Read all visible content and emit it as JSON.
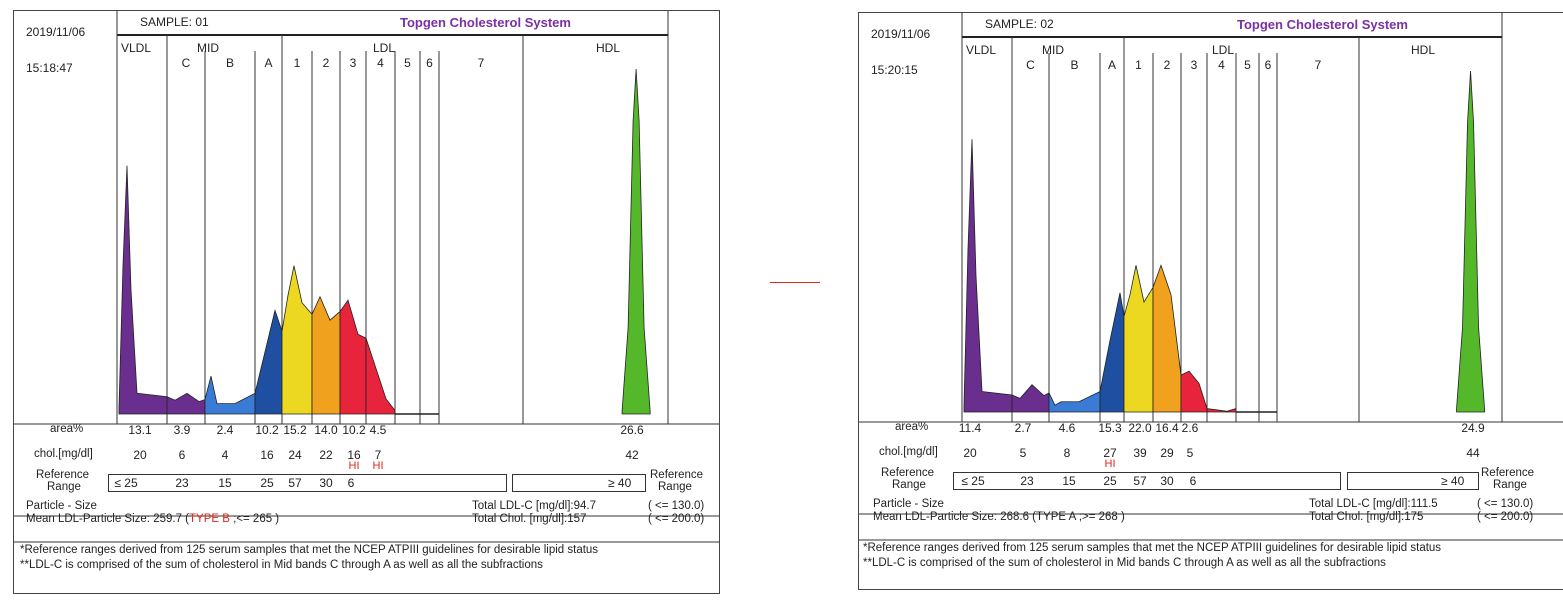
{
  "colors": {
    "vldl": "#6a2e8f",
    "mid": "#3a7bd5",
    "ldl_a": "#1f4fa0",
    "ldl_1": "#ecd820",
    "ldl_2": "#f0a11e",
    "ldl_3": "#e8243c",
    "ldl_4": "#e8243c",
    "hdl": "#55b82a",
    "title": "#7a2fa3",
    "flag": "#e0271b"
  },
  "band_headers": [
    "VLDL",
    "MID",
    "LDL",
    "HDL"
  ],
  "sub_headers": [
    "C",
    "B",
    "A",
    "1",
    "2",
    "3",
    "4",
    "5",
    "6",
    "7"
  ],
  "row_labels": {
    "area": "area%",
    "chol": "chol.[mg/dl]",
    "ref": [
      "Reference",
      "Range"
    ],
    "ref_right": [
      "Reference",
      "Range"
    ],
    "particle": "Particle - Size",
    "total_ldl_label": "Total LDL-C [mg/dl]:",
    "total_chol_label": "Total Chol.   [mg/dl]:"
  },
  "ref_values": [
    "≤ 25",
    "23",
    "15",
    "25",
    "57",
    "30",
    "6"
  ],
  "ref_hdl": "≥  40",
  "footnotes": [
    "*Reference ranges derived from 125 serum samples that met the NCEP ATPIII guidelines for desirable lipid status",
    "**LDL-C is comprised of the sum of cholesterol in Mid bands C through A as well as all the subfractions"
  ],
  "panels": [
    {
      "date": "2019/11/06",
      "time": "15:18:47",
      "sample": "SAMPLE: 01",
      "title": "Topgen Cholesterol System",
      "area": [
        "13.1",
        "3.9",
        "2.4",
        "10.2",
        "15.2",
        "14.0",
        "10.2",
        "4.5",
        "",
        "",
        "",
        "26.6"
      ],
      "chol": [
        "20",
        "6",
        "4",
        "16",
        "24",
        "22",
        "16",
        "7",
        "",
        "",
        "",
        "42"
      ],
      "flags": [
        "",
        "",
        "",
        "",
        "",
        "",
        "HI",
        "HI"
      ],
      "mean_text": "Mean LDL-Particle Size: 259.7 (",
      "type_text": "TYPE B",
      "type_suffix": " ;<= 265 )",
      "type_flag": true,
      "total_ldl": "94.7",
      "total_ldl_range": "( <= 130.0)",
      "total_chol": "157",
      "total_chol_range": "( <= 200.0)",
      "peaks": {
        "vldl": 0.72,
        "mid_c": 0.06,
        "mid_b": 0.11,
        "a": 0.3,
        "p1": 0.43,
        "p2": 0.34,
        "p3": 0.33,
        "p4": 0.22,
        "hdl": 1.0
      }
    },
    {
      "date": "2019/11/06",
      "time": "15:20:15",
      "sample": "SAMPLE: 02",
      "title": "Topgen Cholesterol System",
      "area": [
        "11.4",
        "2.7",
        "4.6",
        "15.3",
        "22.0",
        "16.4",
        "2.6",
        "",
        "",
        "",
        "",
        "24.9"
      ],
      "chol": [
        "20",
        "5",
        "8",
        "27",
        "39",
        "29",
        "5",
        "",
        "",
        "",
        "",
        "44"
      ],
      "flags": [
        "",
        "",
        "",
        "HI",
        "",
        "",
        "",
        ""
      ],
      "mean_text": "Mean LDL-Particle Size: 268.6 (TYPE A   ;>= 268 )",
      "type_text": "",
      "type_suffix": "",
      "type_flag": false,
      "total_ldl": "111.5",
      "total_ldl_range": "( <= 130.0)",
      "total_chol": "175",
      "total_chol_range": "( <= 200.0)",
      "peaks": {
        "vldl": 0.8,
        "mid_c": 0.08,
        "mid_b": 0.02,
        "a": 0.35,
        "p1": 0.43,
        "p2": 0.43,
        "p3": 0.12,
        "p4": 0.01,
        "hdl": 1.0
      }
    }
  ],
  "chart_data": [
    {
      "type": "area",
      "title": "Topgen Cholesterol System",
      "categories": [
        "VLDL",
        "MID C",
        "MID B",
        "MID A",
        "LDL 1",
        "LDL 2",
        "LDL 3",
        "LDL 4",
        "LDL 5",
        "LDL 6",
        "LDL 7",
        "HDL"
      ],
      "series": [
        {
          "name": "area%",
          "values": [
            13.1,
            3.9,
            2.4,
            10.2,
            15.2,
            14.0,
            10.2,
            4.5,
            null,
            null,
            null,
            26.6
          ]
        },
        {
          "name": "chol.[mg/dl]",
          "values": [
            20,
            6,
            4,
            16,
            24,
            22,
            16,
            7,
            null,
            null,
            null,
            42
          ]
        }
      ]
    },
    {
      "type": "area",
      "title": "Topgen Cholesterol System",
      "categories": [
        "VLDL",
        "MID C",
        "MID B",
        "MID A",
        "LDL 1",
        "LDL 2",
        "LDL 3",
        "LDL 4",
        "LDL 5",
        "LDL 6",
        "LDL 7",
        "HDL"
      ],
      "series": [
        {
          "name": "area%",
          "values": [
            11.4,
            2.7,
            4.6,
            15.3,
            22.0,
            16.4,
            2.6,
            null,
            null,
            null,
            null,
            24.9
          ]
        },
        {
          "name": "chol.[mg/dl]",
          "values": [
            20,
            5,
            8,
            27,
            39,
            29,
            5,
            null,
            null,
            null,
            null,
            44
          ]
        }
      ]
    }
  ]
}
